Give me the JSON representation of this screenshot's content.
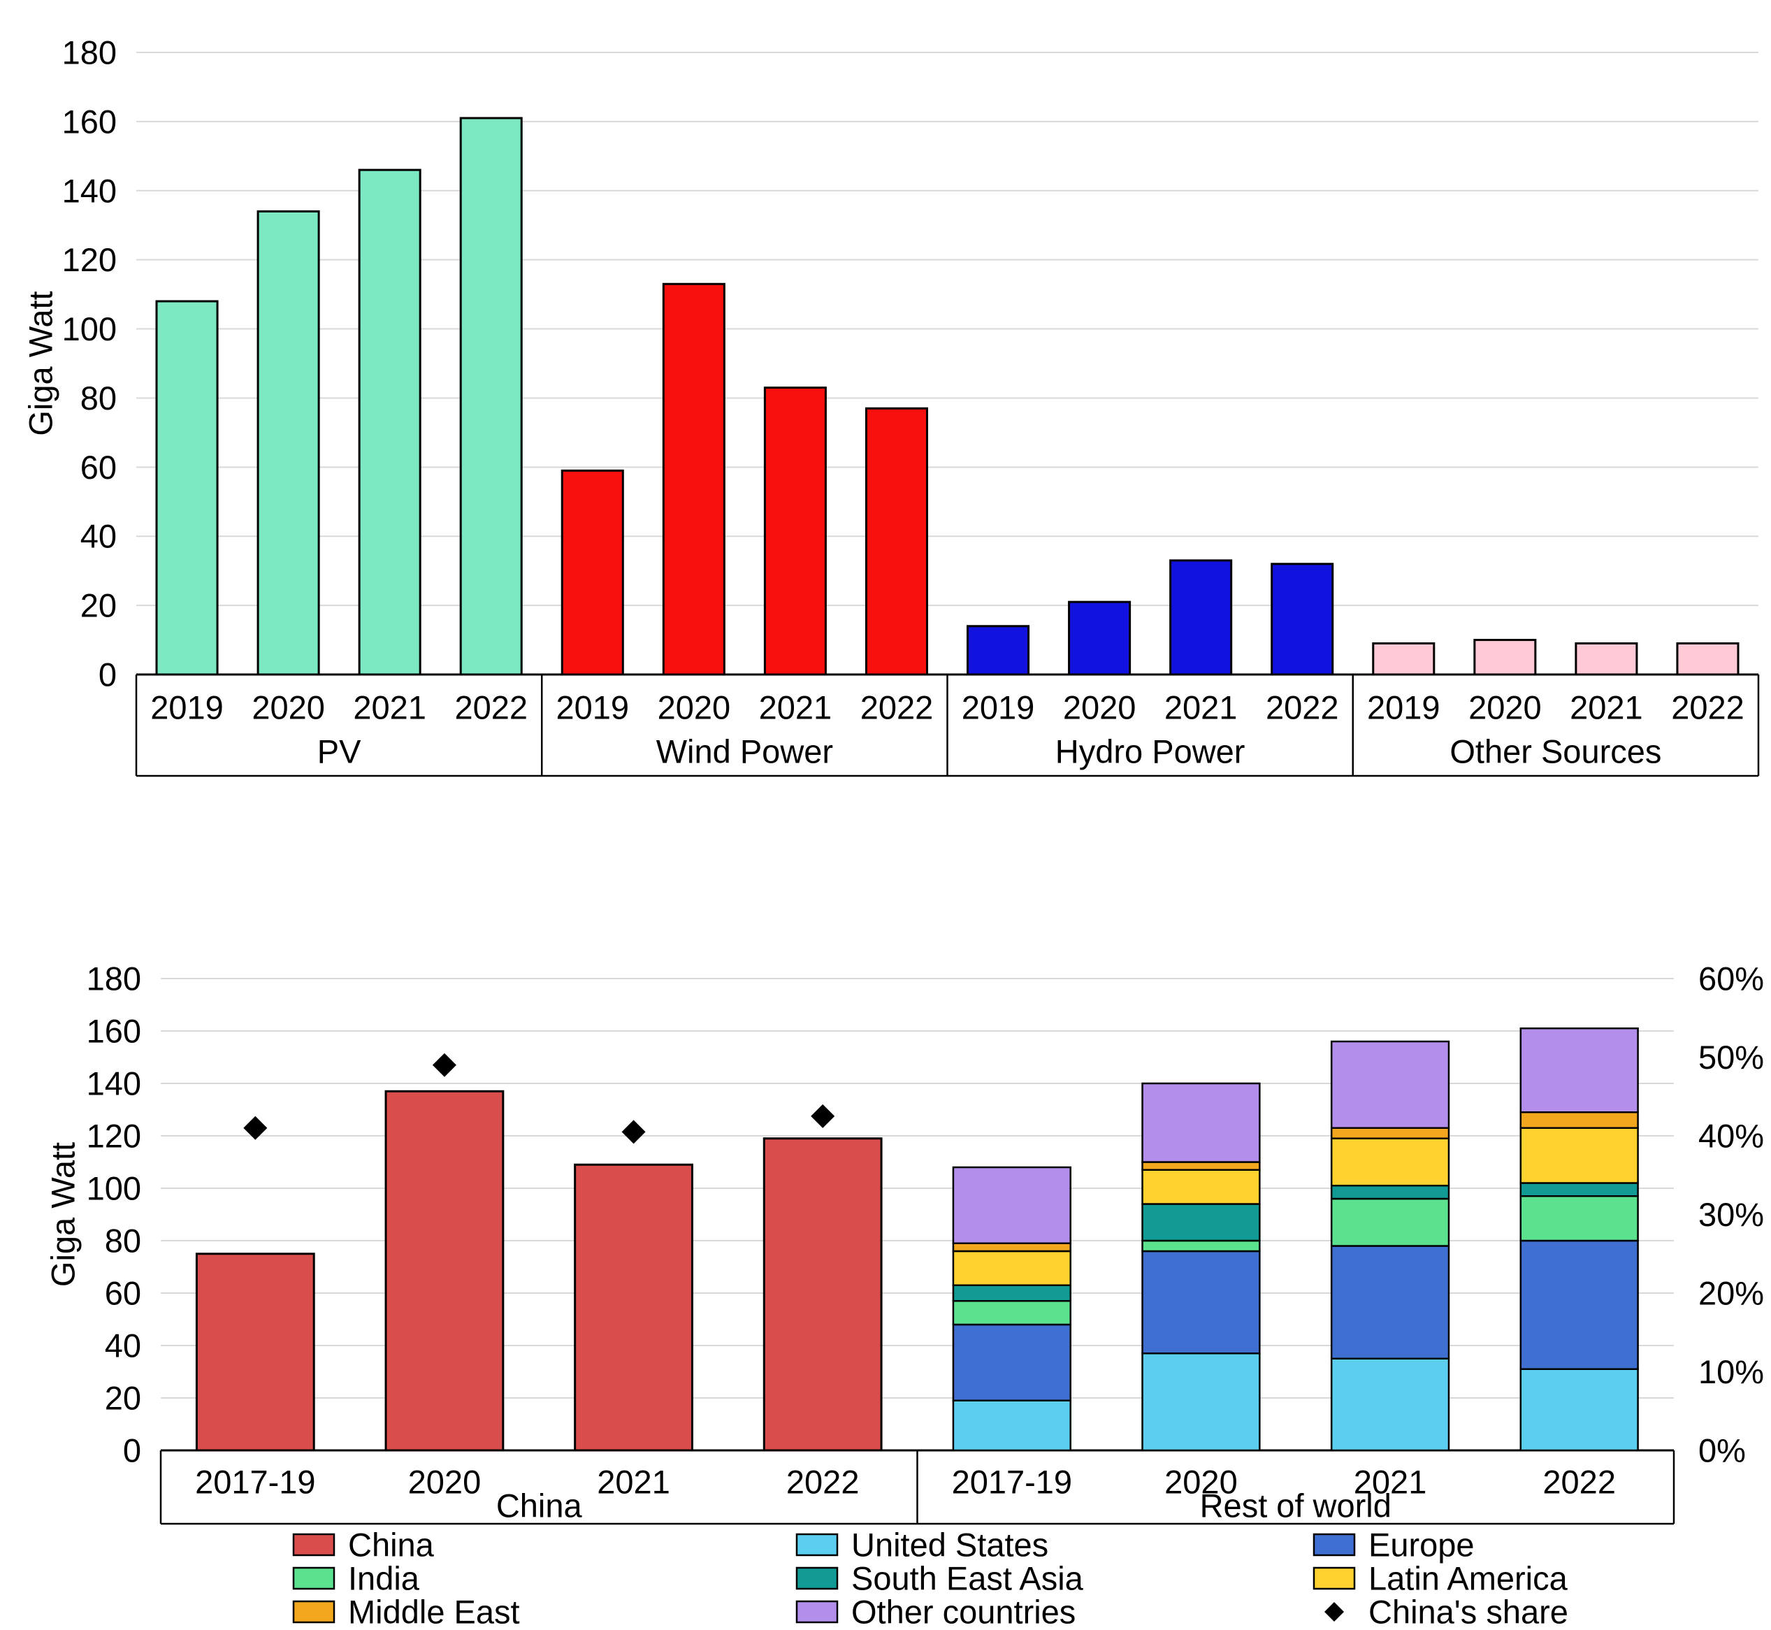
{
  "figure": {
    "background": "#ffffff",
    "grid_color": "#d9d9d9",
    "axis_color": "#000000"
  },
  "chart_data": [
    {
      "type": "bar",
      "ylabel": "Giga Watt",
      "ylim": [
        0,
        180
      ],
      "yticks": [
        0,
        20,
        40,
        60,
        80,
        100,
        120,
        140,
        160,
        180
      ],
      "grid": true,
      "legend_position": "none",
      "categories": [
        "2019",
        "2020",
        "2021",
        "2022"
      ],
      "groups": [
        {
          "label": "PV",
          "color": "#7DE9C3",
          "values": [
            108,
            134,
            146,
            161
          ]
        },
        {
          "label": "Wind Power",
          "color": "#F8100E",
          "values": [
            59,
            113,
            83,
            77
          ]
        },
        {
          "label": "Hydro Power",
          "color": "#1212DE",
          "values": [
            14,
            21,
            33,
            32
          ]
        },
        {
          "label": "Other Sources",
          "color": "#FFC9D6",
          "values": [
            9,
            10,
            9,
            9
          ]
        }
      ]
    },
    {
      "type": "bar",
      "subtype": "grouped-single-plus-stacked-with-share-points",
      "ylabel": "Giga Watt",
      "ylim": [
        0,
        180
      ],
      "yticks": [
        0,
        20,
        40,
        60,
        80,
        100,
        120,
        140,
        160,
        180
      ],
      "y2lim": [
        0,
        60
      ],
      "y2ticks": [
        "0%",
        "10%",
        "20%",
        "30%",
        "40%",
        "50%",
        "60%"
      ],
      "grid": true,
      "categories": [
        "2017-19",
        "2020",
        "2021",
        "2022"
      ],
      "groups": [
        {
          "label": "China",
          "mode": "single",
          "color": "#D94D4D",
          "values": [
            75,
            137,
            109,
            119
          ]
        },
        {
          "label": "Rest of world",
          "mode": "stacked",
          "stack_series": [
            {
              "name": "United States",
              "color": "#5CCFF1",
              "values": [
                19,
                37,
                35,
                31
              ]
            },
            {
              "name": "Europe",
              "color": "#3F6FD1",
              "values": [
                29,
                39,
                43,
                49
              ]
            },
            {
              "name": "India",
              "color": "#5CE28E",
              "values": [
                9,
                4,
                18,
                17
              ]
            },
            {
              "name": "South East Asia",
              "color": "#129B94",
              "values": [
                6,
                14,
                5,
                5
              ]
            },
            {
              "name": "Latin America",
              "color": "#FFD22F",
              "values": [
                13,
                13,
                18,
                21
              ]
            },
            {
              "name": "Middle East",
              "color": "#F2A71F",
              "values": [
                3,
                3,
                4,
                6
              ]
            },
            {
              "name": "Other countries",
              "color": "#B38FEB",
              "values": [
                29,
                30,
                33,
                32
              ]
            }
          ]
        }
      ],
      "points_series": {
        "name": "China's share",
        "marker": "diamond",
        "color": "#000000",
        "axis": "right",
        "values_pct": [
          41,
          49,
          40.5,
          42.5
        ]
      },
      "legend": {
        "columns": [
          [
            {
              "label": "China",
              "color": "#D94D4D"
            },
            {
              "label": "India",
              "color": "#5CE28E"
            },
            {
              "label": "Middle East",
              "color": "#F2A71F"
            }
          ],
          [
            {
              "label": "United States",
              "color": "#5CCFF1"
            },
            {
              "label": "South East Asia",
              "color": "#129B94"
            },
            {
              "label": "Other countries",
              "color": "#B38FEB"
            }
          ],
          [
            {
              "label": "Europe",
              "color": "#3F6FD1"
            },
            {
              "label": "Latin America",
              "color": "#FFD22F"
            },
            {
              "label": "China's share",
              "marker": "diamond",
              "color": "#000000"
            }
          ]
        ]
      }
    }
  ]
}
